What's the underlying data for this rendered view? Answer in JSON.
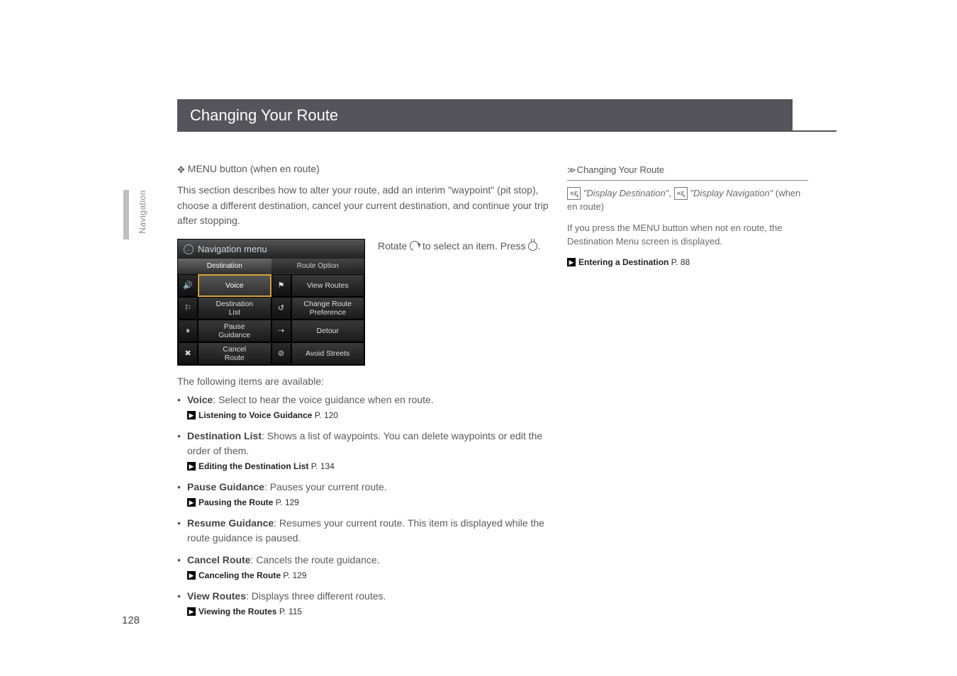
{
  "page": {
    "number": "128",
    "section_tab": "Navigation",
    "header": "Changing Your Route"
  },
  "main": {
    "breadcrumb_label": "MENU button (when en route)",
    "intro": "This section describes how to alter your route, add an interim \"waypoint\" (pit stop), choose a different destination, cancel your current destination, and continue your trip after stopping.",
    "rotate_line_a": "Rotate ",
    "rotate_line_b": " to select an item. Press ",
    "rotate_line_c": ".",
    "items_intro": "The following items are available:",
    "items": [
      {
        "label": "Voice",
        "desc": ": Select to hear the voice guidance when en route.",
        "xref_label": "Listening to Voice Guidance",
        "xref_page": "P. 120"
      },
      {
        "label": "Destination List",
        "desc": ": Shows a list of waypoints. You can delete waypoints or edit the order of them.",
        "xref_label": "Editing the Destination List",
        "xref_page": "P. 134"
      },
      {
        "label": "Pause Guidance",
        "desc": ": Pauses your current route.",
        "xref_label": "Pausing the Route",
        "xref_page": "P. 129"
      },
      {
        "label": "Resume Guidance",
        "desc": ": Resumes your current route. This item is displayed while the route guidance is paused.",
        "xref_label": "",
        "xref_page": ""
      },
      {
        "label": "Cancel Route",
        "desc": ": Cancels the route guidance.",
        "xref_label": "Canceling the Route",
        "xref_page": "P. 129"
      },
      {
        "label": "View Routes",
        "desc": ": Displays three different routes.",
        "xref_label": "Viewing the Routes",
        "xref_page": "P. 115"
      }
    ]
  },
  "nav_menu": {
    "title": "Navigation menu",
    "tab_left": "Destination",
    "tab_right": "Route Option",
    "cells": {
      "voice": "Voice",
      "view_routes": "View Routes",
      "dest_list": "Destination\nList",
      "change_pref": "Change Route\nPreference",
      "pause": "Pause\nGuidance",
      "detour": "Detour",
      "cancel": "Cancel\nRoute",
      "avoid": "Avoid Streets"
    }
  },
  "sidebar": {
    "head": "Changing Your Route",
    "voice_a": "\"Display Destination\"",
    "voice_sep": ", ",
    "voice_b": "\"Display Navigation\"",
    "voice_tail": " (when en route)",
    "note": "If you press the MENU button when not en route, the Destination Menu screen is displayed.",
    "xref_label": "Entering a Destination",
    "xref_page": "P. 88"
  }
}
